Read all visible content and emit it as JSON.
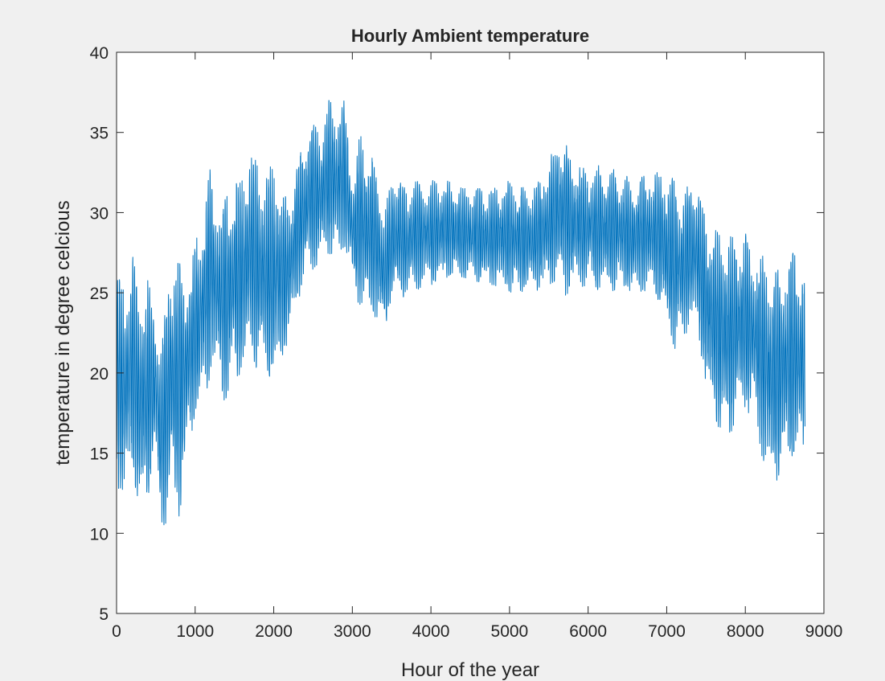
{
  "figure": {
    "background": "#f0f0f0"
  },
  "chart_data": {
    "type": "line",
    "title": "Hourly Ambient temperature",
    "xlabel": "Hour of the year",
    "ylabel": "temperature in degree celcious",
    "xlim": [
      0,
      9000
    ],
    "ylim": [
      5,
      40
    ],
    "xticks": [
      0,
      1000,
      2000,
      3000,
      4000,
      5000,
      6000,
      7000,
      8000,
      9000
    ],
    "yticks": [
      5,
      10,
      15,
      20,
      25,
      30,
      35,
      40
    ],
    "grid": false,
    "series_color": "#0072BD",
    "series": [
      {
        "name": "",
        "x_start": 1,
        "x_end": 8760,
        "envelope_x": [
          0,
          100,
          200,
          300,
          400,
          500,
          550,
          600,
          700,
          800,
          900,
          1000,
          1100,
          1200,
          1300,
          1400,
          1500,
          1600,
          1700,
          1800,
          1900,
          2000,
          2100,
          2200,
          2300,
          2400,
          2500,
          2600,
          2700,
          2800,
          2900,
          3000,
          3100,
          3200,
          3300,
          3400,
          3500,
          3600,
          3700,
          3800,
          3900,
          4000,
          4200,
          4400,
          4600,
          4800,
          5000,
          5200,
          5400,
          5600,
          5700,
          5800,
          6000,
          6200,
          6400,
          6600,
          6800,
          6900,
          7000,
          7100,
          7200,
          7300,
          7400,
          7500,
          7600,
          7700,
          7800,
          7900,
          8000,
          8100,
          8200,
          8300,
          8400,
          8500,
          8600,
          8760
        ],
        "envelope_low": [
          13,
          12.2,
          14,
          11.2,
          12.3,
          15,
          10,
          10,
          12.5,
          11,
          15.5,
          17,
          18,
          20,
          20,
          17.5,
          20,
          19.5,
          21.5,
          20,
          20.5,
          19,
          21,
          22,
          24.5,
          25.5,
          26.5,
          27,
          27.5,
          27,
          28,
          25.5,
          24,
          23.5,
          23.5,
          22.3,
          24.5,
          24.5,
          25,
          25,
          25.5,
          25.5,
          25.8,
          26,
          25.5,
          25.5,
          25,
          25,
          25.2,
          25.8,
          24.8,
          25.2,
          25.5,
          25,
          25.2,
          25,
          25.2,
          24.5,
          22.5,
          21.5,
          22,
          23,
          22.5,
          19,
          17.5,
          16,
          16,
          17.5,
          17.5,
          17.5,
          15,
          13.5,
          13.3,
          14.5,
          14.5,
          15
        ],
        "envelope_high": [
          26,
          25.5,
          27.5,
          24.5,
          25.8,
          23.5,
          22,
          23,
          27.5,
          27.5,
          25.5,
          28,
          30,
          33,
          30,
          31,
          32,
          32,
          34,
          33,
          32,
          33.5,
          31,
          31,
          33,
          35,
          35.5,
          35,
          37,
          36.5,
          37,
          32,
          35,
          34.5,
          33,
          30,
          32,
          32.5,
          31,
          33,
          31.5,
          32,
          32,
          31.5,
          31.5,
          31.5,
          32,
          31.5,
          32,
          34.5,
          35,
          33,
          32.8,
          33,
          32.5,
          32,
          32.5,
          32.5,
          32.5,
          32,
          31,
          32,
          32,
          29.5,
          29,
          28.5,
          28.5,
          28.5,
          29,
          27.5,
          27.5,
          26.5,
          26.5,
          27,
          27.5,
          26.5
        ]
      }
    ]
  }
}
